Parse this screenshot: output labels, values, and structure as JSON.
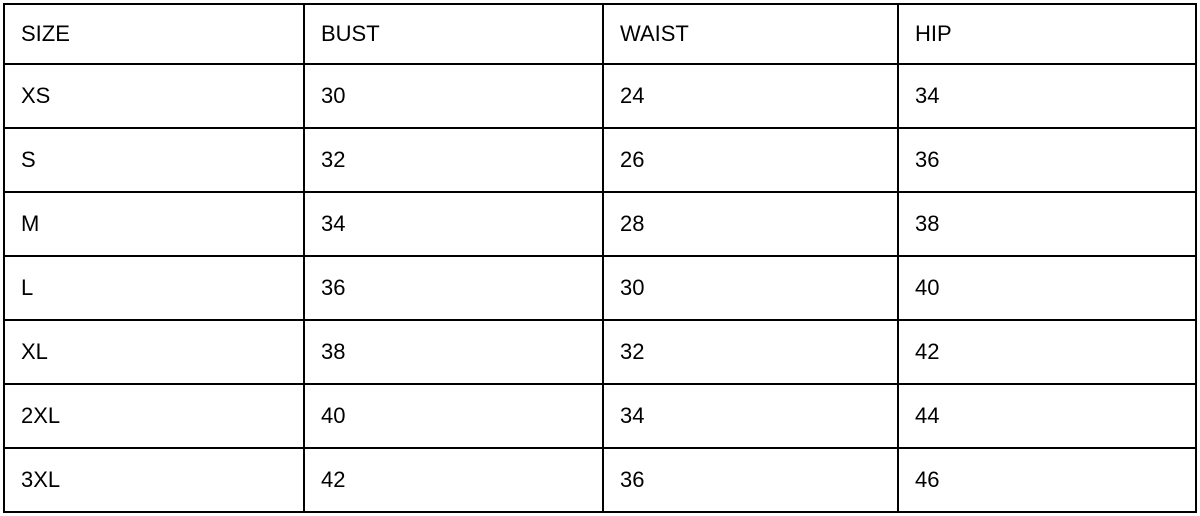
{
  "table": {
    "columns": [
      "SIZE",
      "BUST",
      "WAIST",
      "HIP"
    ],
    "rows": [
      [
        "XS",
        "30",
        "24",
        "34"
      ],
      [
        "S",
        "32",
        "26",
        "36"
      ],
      [
        "M",
        "34",
        "28",
        "38"
      ],
      [
        "L",
        "36",
        "30",
        "40"
      ],
      [
        "XL",
        "38",
        "32",
        "42"
      ],
      [
        "2XL",
        "40",
        "34",
        "44"
      ],
      [
        "3XL",
        "42",
        "36",
        "46"
      ]
    ]
  },
  "chart_data": {
    "type": "table",
    "title": "",
    "columns": [
      "SIZE",
      "BUST",
      "WAIST",
      "HIP"
    ],
    "rows": [
      [
        "XS",
        30,
        24,
        34
      ],
      [
        "S",
        32,
        26,
        36
      ],
      [
        "M",
        34,
        28,
        38
      ],
      [
        "L",
        36,
        30,
        40
      ],
      [
        "XL",
        38,
        32,
        42
      ],
      [
        "2XL",
        40,
        34,
        44
      ],
      [
        "3XL",
        42,
        36,
        46
      ]
    ]
  },
  "colors": {
    "border": "#000000",
    "text": "#000000",
    "background": "#ffffff"
  }
}
